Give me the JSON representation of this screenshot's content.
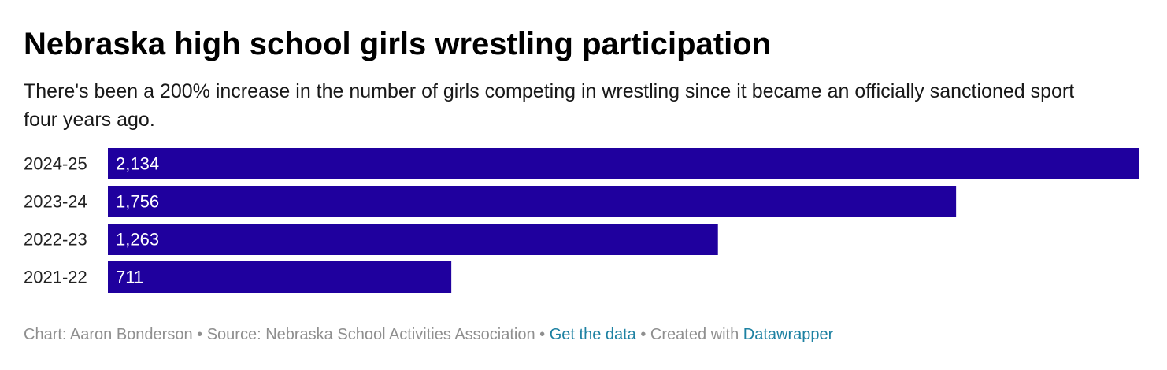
{
  "chart_data": {
    "type": "bar",
    "orientation": "horizontal",
    "title": "Nebraska high school girls wrestling participation",
    "subtitle": "There's been a 200% increase in the number of girls competing in wrestling since it became an officially sanctioned sport four years ago.",
    "categories": [
      "2024-25",
      "2023-24",
      "2022-23",
      "2021-22"
    ],
    "values": [
      2134,
      1756,
      1263,
      711
    ],
    "value_labels": [
      "2,134",
      "1,756",
      "1,263",
      "711"
    ],
    "xlim": [
      0,
      2134
    ],
    "grid": false,
    "bar_color": "#1f009e"
  },
  "footer": {
    "byline": "Chart: Aaron Bonderson",
    "sep1": " • ",
    "source": "Source: Nebraska School Activities Association",
    "sep2": " • ",
    "data_link": "Get the data",
    "sep3": " • ",
    "created_with": "Created with ",
    "tool_link": "Datawrapper"
  },
  "colors": {
    "link": "#1d81a2",
    "footer_text": "#8f8f8f"
  }
}
